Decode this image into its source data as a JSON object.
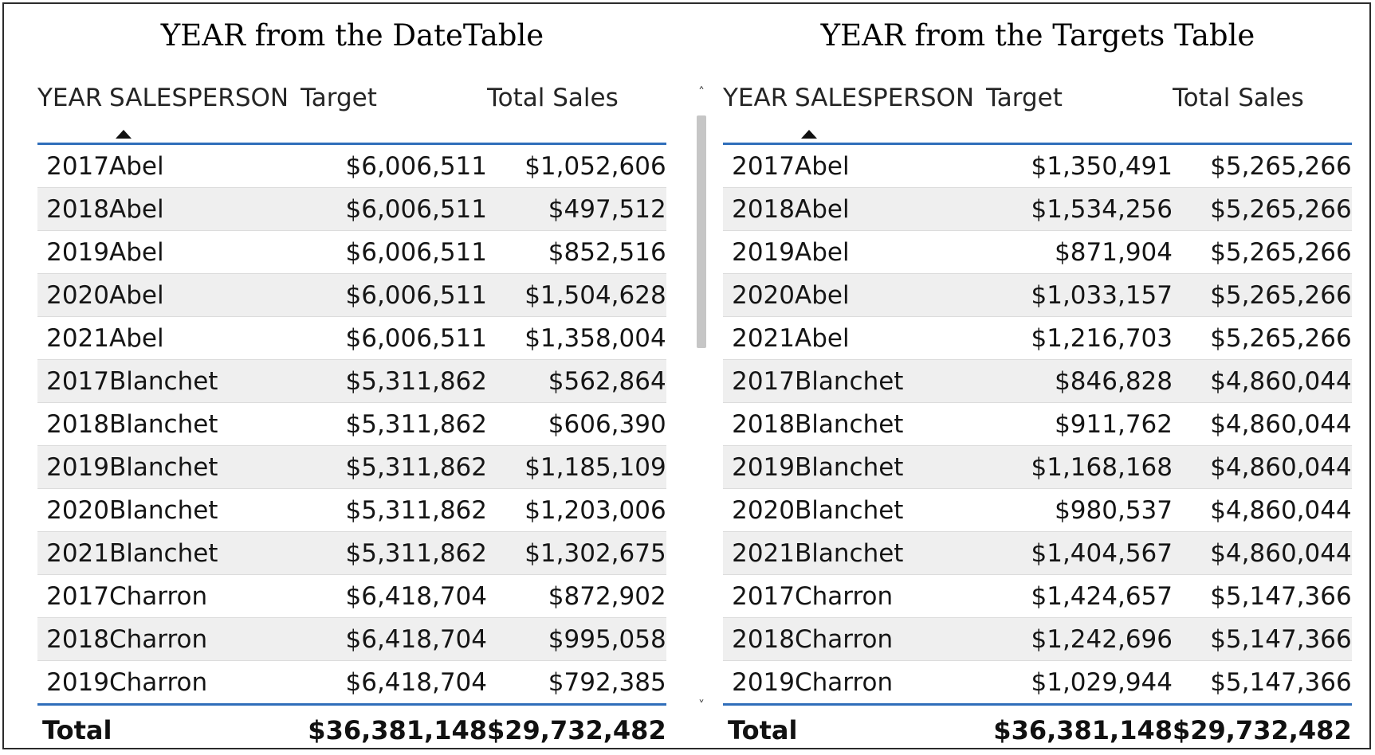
{
  "left": {
    "title": "YEAR from the DateTable",
    "headers": {
      "year": "YEAR",
      "salesperson": "SALESPERSON",
      "target": "Target",
      "total_sales": "Total Sales"
    },
    "rows": [
      {
        "year": "2017",
        "salesperson": "Abel",
        "target": "$6,006,511",
        "total_sales": "$1,052,606"
      },
      {
        "year": "2018",
        "salesperson": "Abel",
        "target": "$6,006,511",
        "total_sales": "$497,512"
      },
      {
        "year": "2019",
        "salesperson": "Abel",
        "target": "$6,006,511",
        "total_sales": "$852,516"
      },
      {
        "year": "2020",
        "salesperson": "Abel",
        "target": "$6,006,511",
        "total_sales": "$1,504,628"
      },
      {
        "year": "2021",
        "salesperson": "Abel",
        "target": "$6,006,511",
        "total_sales": "$1,358,004"
      },
      {
        "year": "2017",
        "salesperson": "Blanchet",
        "target": "$5,311,862",
        "total_sales": "$562,864"
      },
      {
        "year": "2018",
        "salesperson": "Blanchet",
        "target": "$5,311,862",
        "total_sales": "$606,390"
      },
      {
        "year": "2019",
        "salesperson": "Blanchet",
        "target": "$5,311,862",
        "total_sales": "$1,185,109"
      },
      {
        "year": "2020",
        "salesperson": "Blanchet",
        "target": "$5,311,862",
        "total_sales": "$1,203,006"
      },
      {
        "year": "2021",
        "salesperson": "Blanchet",
        "target": "$5,311,862",
        "total_sales": "$1,302,675"
      },
      {
        "year": "2017",
        "salesperson": "Charron",
        "target": "$6,418,704",
        "total_sales": "$872,902"
      },
      {
        "year": "2018",
        "salesperson": "Charron",
        "target": "$6,418,704",
        "total_sales": "$995,058"
      },
      {
        "year": "2019",
        "salesperson": "Charron",
        "target": "$6,418,704",
        "total_sales": "$792,385"
      }
    ],
    "total": {
      "label": "Total",
      "target": "$36,381,148",
      "total_sales": "$29,732,482"
    }
  },
  "right": {
    "title": "YEAR from the Targets Table",
    "headers": {
      "year": "YEAR",
      "salesperson": "SALESPERSON",
      "target": "Target",
      "total_sales": "Total Sales"
    },
    "rows": [
      {
        "year": "2017",
        "salesperson": "Abel",
        "target": "$1,350,491",
        "total_sales": "$5,265,266"
      },
      {
        "year": "2018",
        "salesperson": "Abel",
        "target": "$1,534,256",
        "total_sales": "$5,265,266"
      },
      {
        "year": "2019",
        "salesperson": "Abel",
        "target": "$871,904",
        "total_sales": "$5,265,266"
      },
      {
        "year": "2020",
        "salesperson": "Abel",
        "target": "$1,033,157",
        "total_sales": "$5,265,266"
      },
      {
        "year": "2021",
        "salesperson": "Abel",
        "target": "$1,216,703",
        "total_sales": "$5,265,266"
      },
      {
        "year": "2017",
        "salesperson": "Blanchet",
        "target": "$846,828",
        "total_sales": "$4,860,044"
      },
      {
        "year": "2018",
        "salesperson": "Blanchet",
        "target": "$911,762",
        "total_sales": "$4,860,044"
      },
      {
        "year": "2019",
        "salesperson": "Blanchet",
        "target": "$1,168,168",
        "total_sales": "$4,860,044"
      },
      {
        "year": "2020",
        "salesperson": "Blanchet",
        "target": "$980,537",
        "total_sales": "$4,860,044"
      },
      {
        "year": "2021",
        "salesperson": "Blanchet",
        "target": "$1,404,567",
        "total_sales": "$4,860,044"
      },
      {
        "year": "2017",
        "salesperson": "Charron",
        "target": "$1,424,657",
        "total_sales": "$5,147,366"
      },
      {
        "year": "2018",
        "salesperson": "Charron",
        "target": "$1,242,696",
        "total_sales": "$5,147,366"
      },
      {
        "year": "2019",
        "salesperson": "Charron",
        "target": "$1,029,944",
        "total_sales": "$5,147,366"
      }
    ],
    "total": {
      "label": "Total",
      "target": "$36,381,148",
      "total_sales": "$29,732,482"
    }
  },
  "scrollbar": {
    "up_glyph": "˄",
    "down_glyph": "˅"
  },
  "colors": {
    "header_rule": "#2f6eba",
    "row_stripe": "#efefef"
  }
}
